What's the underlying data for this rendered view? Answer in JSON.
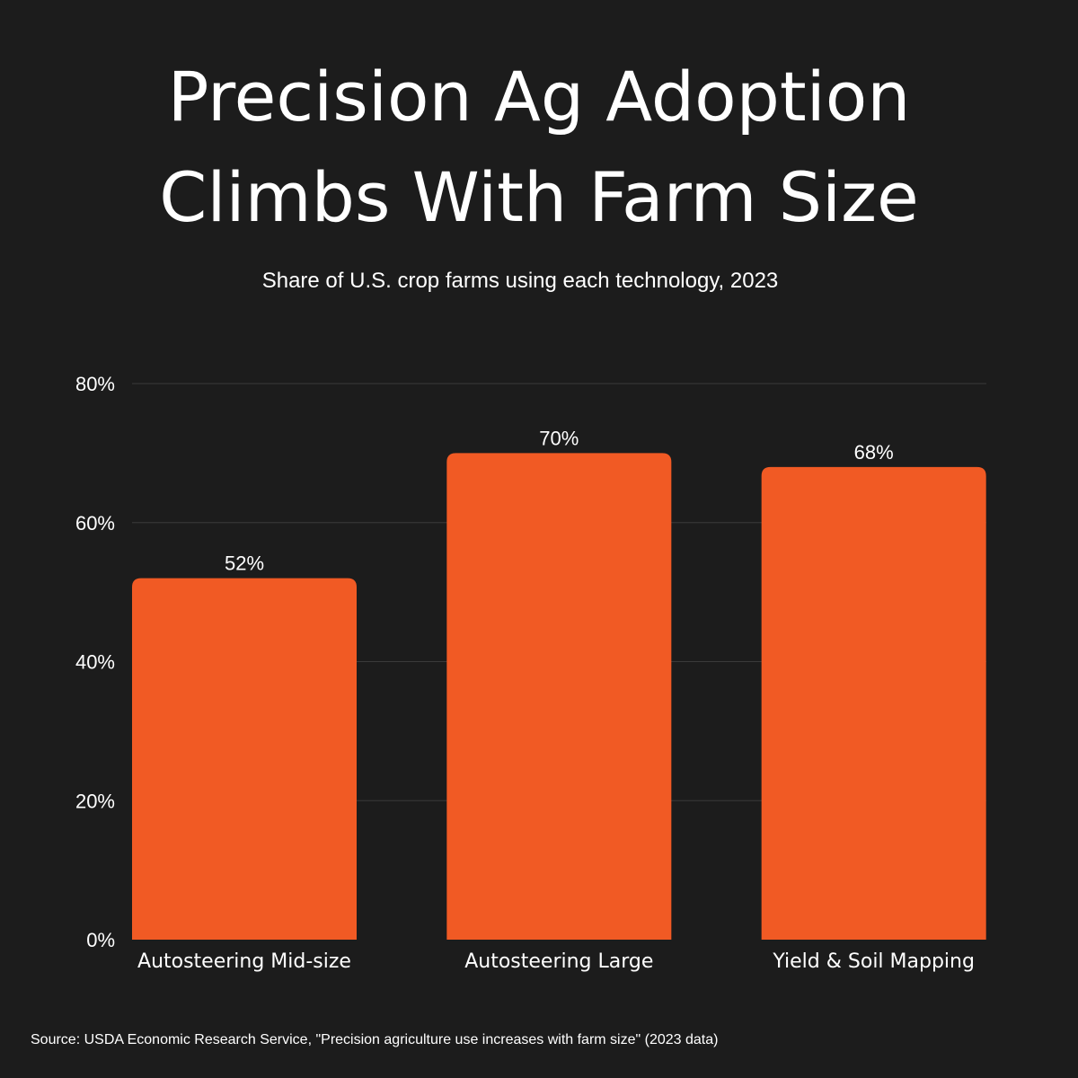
{
  "chart_data": {
    "type": "bar",
    "title_lines": [
      "Precision Ag Adoption",
      "Climbs With Farm Size"
    ],
    "subtitle": "Share of U.S. crop farms using each technology, 2023",
    "categories": [
      "Autosteering Mid-size",
      "Autosteering Large",
      "Yield & Soil Mapping"
    ],
    "values": [
      52,
      70,
      68
    ],
    "value_labels": [
      "52%",
      "70%",
      "68%"
    ],
    "ylim": [
      0,
      80
    ],
    "yticks": [
      0,
      20,
      40,
      60,
      80
    ],
    "ytick_labels": [
      "0%",
      "20%",
      "40%",
      "60%",
      "80%"
    ],
    "xlabel": "",
    "ylabel": "",
    "grid": true,
    "legend": "none",
    "bar_color": "#f15a24",
    "grid_color": "#3a3a3a",
    "background": "#1c1c1c",
    "text_color": "#ffffff",
    "source": "Source: USDA Economic Research Service, \"Precision agriculture use increases with farm size\" (2023 data)"
  }
}
